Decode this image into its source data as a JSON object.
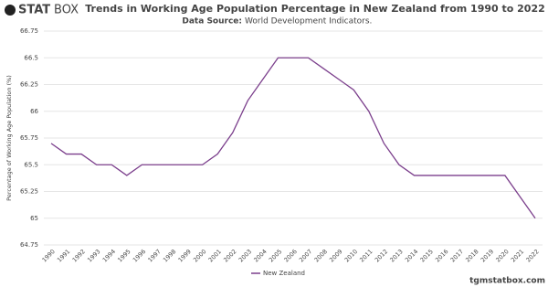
{
  "logo": {
    "bold": "STAT",
    "light": "BOX"
  },
  "footer": "tgmstatbox.com",
  "chart_data": {
    "type": "line",
    "title": "Trends in Working Age Population Percentage in New Zealand from 1990 to 2022",
    "subtitle_label": "Data Source:",
    "subtitle": "World Development Indicators.",
    "y_label": "Percentage of Working Age Population (%)",
    "categories": [
      "1990",
      "1991",
      "1992",
      "1993",
      "1994",
      "1995",
      "1996",
      "1997",
      "1998",
      "1999",
      "2000",
      "2001",
      "2002",
      "2003",
      "2004",
      "2005",
      "2006",
      "2007",
      "2008",
      "2009",
      "2010",
      "2011",
      "2012",
      "2013",
      "2014",
      "2015",
      "2016",
      "2017",
      "2018",
      "2019",
      "2020",
      "2021",
      "2022"
    ],
    "series": [
      {
        "name": "New Zealand",
        "color": "#7b3f8c",
        "values": [
          65.7,
          65.6,
          65.6,
          65.5,
          65.5,
          65.4,
          65.5,
          65.5,
          65.5,
          65.5,
          65.5,
          65.6,
          65.8,
          66.1,
          66.3,
          66.5,
          66.5,
          66.5,
          66.4,
          66.3,
          66.2,
          66.0,
          65.7,
          65.5,
          65.4,
          65.4,
          65.4,
          65.4,
          65.4,
          65.4,
          65.4,
          65.2,
          65.0
        ]
      }
    ],
    "ylim": [
      64.75,
      66.75
    ],
    "yticks": [
      64.75,
      65,
      65.25,
      65.5,
      65.75,
      66,
      66.25,
      66.5,
      66.75
    ],
    "grid": true,
    "legend": "bottom"
  }
}
